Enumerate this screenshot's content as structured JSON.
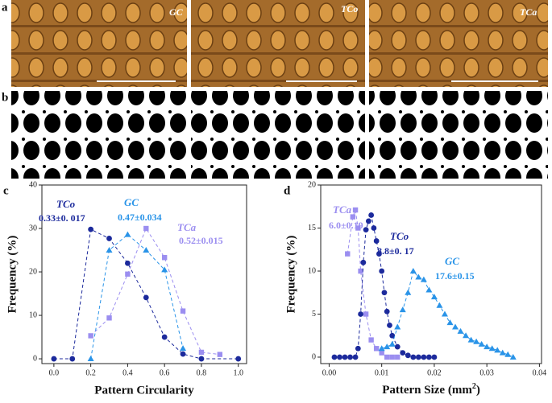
{
  "figure": {
    "panel_a": {
      "label": "a",
      "captions": [
        "GC",
        "TCo",
        "TCa"
      ]
    },
    "panel_b": {
      "label": "b"
    }
  },
  "chart_data": [
    {
      "type": "scatter",
      "panel_label": "c",
      "xlabel": "Pattern Circularity",
      "ylabel": "Frequency (%)",
      "xlim": [
        -0.065,
        1.045
      ],
      "ylim": [
        -1.1,
        40
      ],
      "xticks": [
        {
          "value": 0,
          "label": "0.0"
        },
        {
          "value": 0.2,
          "label": "0.2"
        },
        {
          "value": 0.4,
          "label": "0.4"
        },
        {
          "value": 0.6,
          "label": "0.6"
        },
        {
          "value": 0.8,
          "label": "0.8"
        },
        {
          "value": 1,
          "label": "1.0"
        }
      ],
      "yticks": [
        0,
        10,
        20,
        30,
        40
      ],
      "series": [
        {
          "name": "TCo",
          "annotation": "0.33±0. 017",
          "color": "#1c2a9c",
          "marker": "circle",
          "x": [
            0,
            0.1,
            0.2,
            0.3,
            0.4,
            0.5,
            0.6,
            0.7,
            0.8,
            1.0
          ],
          "values": [
            0,
            0,
            29.8,
            27.7,
            22,
            14.1,
            5,
            1.1,
            0,
            0
          ]
        },
        {
          "name": "GC",
          "annotation": "0.47±0.034",
          "color": "#2a94e8",
          "marker": "triangle",
          "x": [
            0.2,
            0.3,
            0.4,
            0.5,
            0.6,
            0.7
          ],
          "values": [
            0,
            25,
            28.6,
            25,
            20.5,
            2.4
          ]
        },
        {
          "name": "TCa",
          "annotation": "0.52±0.015",
          "color": "#9b8ef0",
          "marker": "square",
          "x": [
            0.2,
            0.3,
            0.4,
            0.5,
            0.6,
            0.7,
            0.8,
            0.9
          ],
          "values": [
            5.3,
            9.4,
            19.5,
            30,
            23.3,
            11,
            1.5,
            1
          ]
        }
      ]
    },
    {
      "type": "scatter",
      "panel_label": "d",
      "xlabel": [
        "Pattern Size (mm",
        "2",
        ")"
      ],
      "ylabel": "Frequency (%)",
      "xlim": [
        -0.0016,
        0.0404
      ],
      "ylim": [
        -0.75,
        20
      ],
      "xticks": [
        {
          "value": 0,
          "label": "0.00"
        },
        {
          "value": 0.01,
          "label": "0.01"
        },
        {
          "value": 0.02,
          "label": "0.02"
        },
        {
          "value": 0.03,
          "label": "0.03"
        },
        {
          "value": 0.04,
          "label": "0.04"
        }
      ],
      "yticks": [
        0,
        5,
        10,
        15,
        20
      ],
      "series": [
        {
          "name": "TCa",
          "annotation": "6.0±0.19",
          "color": "#9b8ef0",
          "marker": "square",
          "x": [
            0.0035,
            0.0045,
            0.005,
            0.0055,
            0.006,
            0.007,
            0.008,
            0.009,
            0.01,
            0.011,
            0.012,
            0.013
          ],
          "values": [
            12,
            16.3,
            17.1,
            15,
            10,
            5,
            2,
            1,
            0.5,
            0,
            0,
            0
          ]
        },
        {
          "name": "TCo",
          "annotation": "8.8±0. 17",
          "color": "#1c2a9c",
          "marker": "circle",
          "x": [
            0.001,
            0.002,
            0.003,
            0.004,
            0.005,
            0.0055,
            0.006,
            0.0065,
            0.007,
            0.0075,
            0.008,
            0.0085,
            0.009,
            0.0095,
            0.01,
            0.0105,
            0.011,
            0.0115,
            0.012,
            0.013,
            0.014,
            0.015,
            0.016,
            0.017,
            0.018,
            0.019,
            0.02
          ],
          "values": [
            0,
            0,
            0,
            0,
            0,
            1,
            5,
            11,
            14.8,
            15.8,
            16.5,
            15,
            13.5,
            12,
            10,
            7.5,
            5.3,
            3.7,
            2.5,
            1.2,
            0.5,
            0.2,
            0,
            0,
            0,
            0,
            0
          ]
        },
        {
          "name": "GC",
          "annotation": "17.6±0.15",
          "color": "#2a94e8",
          "marker": "triangle",
          "x": [
            0.01,
            0.011,
            0.012,
            0.013,
            0.014,
            0.015,
            0.016,
            0.017,
            0.018,
            0.019,
            0.02,
            0.021,
            0.022,
            0.023,
            0.024,
            0.025,
            0.026,
            0.027,
            0.028,
            0.029,
            0.03,
            0.031,
            0.032,
            0.033,
            0.034,
            0.035
          ],
          "values": [
            1,
            1.2,
            1.5,
            3.5,
            5.5,
            7.5,
            10,
            9.3,
            9,
            7.8,
            7,
            6,
            5,
            4,
            3.5,
            3,
            2.5,
            2,
            1.8,
            1.5,
            1.2,
            1,
            0.8,
            0.5,
            0.3,
            0
          ]
        }
      ]
    }
  ]
}
